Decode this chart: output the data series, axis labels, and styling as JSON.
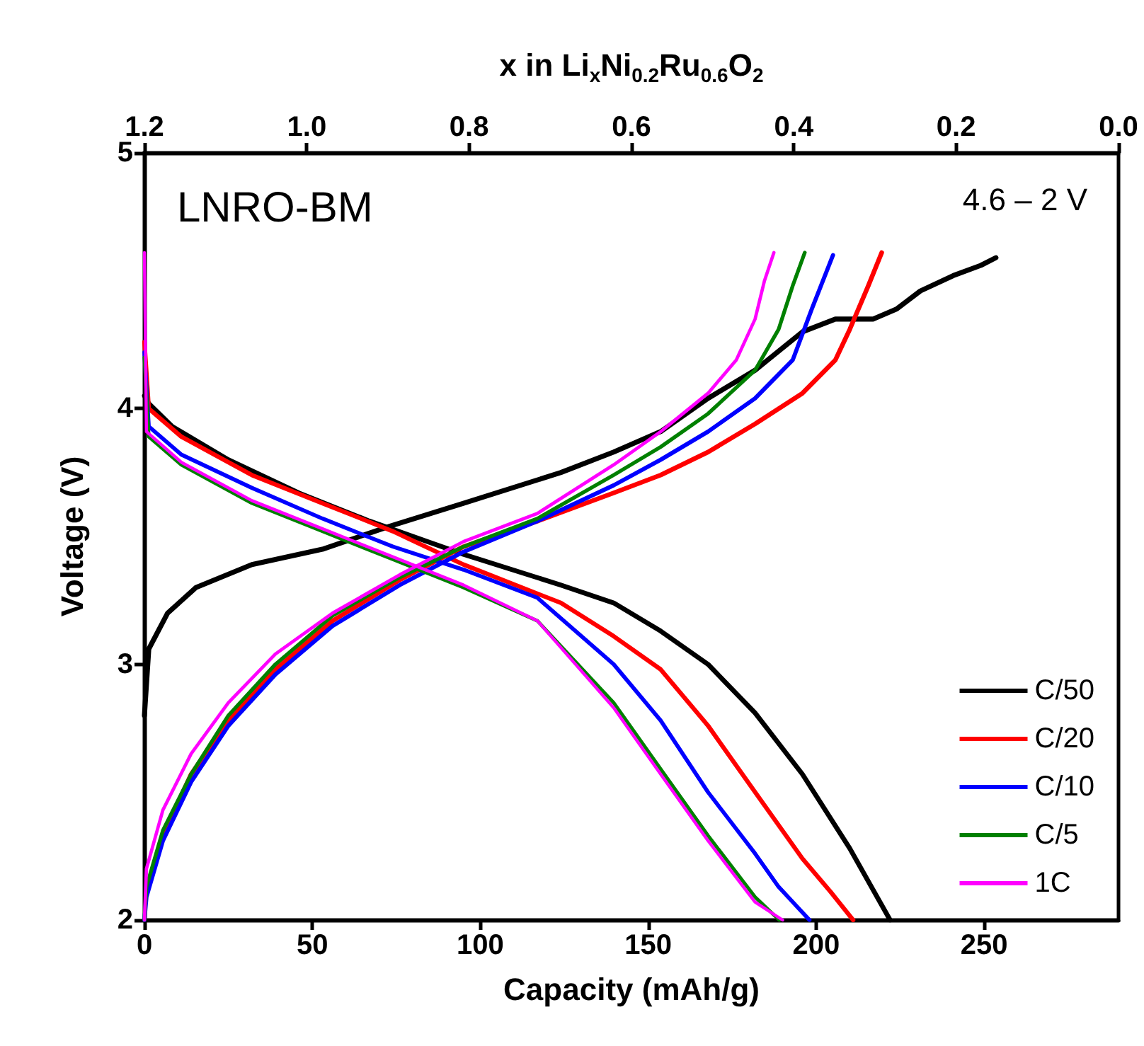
{
  "chart_data": {
    "type": "line",
    "xlabel": "Capacity (mAh/g)",
    "ylabel": "Voltage (V)",
    "x2label": "x in Li$_{x}$Ni$_{0.2}$Ru$_{0.6}$O$_{2}$",
    "annotations": [
      "LNRO-BM",
      "4.6 – 2 V"
    ],
    "xlim": [
      0,
      290
    ],
    "xticks": [
      0,
      50,
      100,
      150,
      200,
      250
    ],
    "x2lim": [
      1.2,
      0
    ],
    "x2ticks": [
      1.2,
      {
        "value": 1,
        "label": "1.0"
      },
      0.8,
      0.6,
      0.4,
      0.2,
      {
        "value": 0,
        "label": "0.0"
      }
    ],
    "ylim": [
      2,
      5
    ],
    "yticks": [
      2,
      3,
      4,
      5
    ],
    "grid": false,
    "legend": "bottom right",
    "marker": "none",
    "line_style": "solid",
    "series": [
      {
        "name": "C/50",
        "color": "#000000",
        "x": [
          0,
          1.3,
          6.9,
          15.3,
          32,
          53,
          73,
          95,
          124,
          139.7,
          153.7,
          167.8,
          181.8,
          195.9,
          205.7,
          217,
          224,
          231,
          240.8,
          249,
          253.5
        ],
        "values": [
          2.8,
          3.06,
          3.2,
          3.3,
          3.39,
          3.45,
          3.54,
          3.63,
          3.75,
          3.83,
          3.91,
          4.04,
          4.15,
          4.3,
          4.35,
          4.35,
          4.39,
          4.46,
          4.52,
          4.56,
          4.59
        ]
      },
      {
        "color": "#000000",
        "x": [
          0,
          1.3,
          8.3,
          25,
          46,
          67,
          95,
          124,
          139.7,
          153.7,
          167.8,
          181.8,
          195.9,
          210,
          222
        ],
        "values": [
          4.05,
          4.02,
          3.93,
          3.8,
          3.67,
          3.56,
          3.43,
          3.31,
          3.24,
          3.13,
          3.0,
          2.81,
          2.57,
          2.28,
          2.0
        ]
      },
      {
        "name": "C/20",
        "color": "#ff0000",
        "x": [
          5.5,
          13.9,
          25,
          39,
          56,
          76,
          95,
          117,
          139.7,
          153.7,
          167.8,
          181.8,
          195.9,
          205.7,
          210,
          215.5,
          219.5
        ],
        "values": [
          2.33,
          2.57,
          2.78,
          2.98,
          3.17,
          3.33,
          3.46,
          3.56,
          3.67,
          3.74,
          3.83,
          3.94,
          4.06,
          4.19,
          4.31,
          4.48,
          4.61
        ]
      },
      {
        "color": "#ff0000",
        "x": [
          0,
          1.3,
          11,
          32,
          53,
          74,
          95,
          124,
          139.7,
          153.7,
          167.8,
          181.8,
          195.9,
          204.3,
          211
        ],
        "values": [
          4.26,
          4.0,
          3.89,
          3.74,
          3.63,
          3.52,
          3.39,
          3.24,
          3.11,
          2.98,
          2.76,
          2.5,
          2.24,
          2.11,
          2.0
        ]
      },
      {
        "name": "C/10",
        "color": "#0000ff",
        "x": [
          0,
          0.6,
          5.5,
          13.9,
          25,
          39,
          56,
          76,
          95,
          117,
          139.7,
          153.7,
          167.8,
          181.8,
          193,
          198.7,
          205
        ],
        "values": [
          2.0,
          2.09,
          2.31,
          2.54,
          2.76,
          2.96,
          3.15,
          3.31,
          3.44,
          3.56,
          3.7,
          3.8,
          3.91,
          4.04,
          4.19,
          4.39,
          4.6
        ]
      },
      {
        "color": "#0000ff",
        "x": [
          0,
          1.3,
          11,
          32,
          53,
          74,
          95,
          117,
          139.7,
          153.7,
          167.8,
          181.8,
          188.8,
          198
        ],
        "values": [
          4.22,
          3.93,
          3.82,
          3.69,
          3.57,
          3.46,
          3.37,
          3.26,
          3.0,
          2.78,
          2.5,
          2.26,
          2.13,
          2.0
        ]
      },
      {
        "name": "C/5",
        "color": "#008000",
        "x": [
          0,
          0.6,
          5.5,
          13.9,
          25,
          39,
          56,
          76,
          95,
          117,
          139.7,
          153.7,
          167.8,
          181.8,
          188.8,
          193,
          196.6
        ],
        "values": [
          2.0,
          2.13,
          2.35,
          2.57,
          2.8,
          3.0,
          3.19,
          3.34,
          3.46,
          3.57,
          3.74,
          3.85,
          3.98,
          4.15,
          4.31,
          4.48,
          4.61
        ]
      },
      {
        "color": "#008000",
        "x": [
          0,
          1.3,
          11,
          32,
          53,
          74,
          95,
          117,
          139.7,
          153.7,
          167.8,
          181.8,
          189
        ],
        "values": [
          4.2,
          3.89,
          3.78,
          3.63,
          3.52,
          3.41,
          3.3,
          3.17,
          2.85,
          2.59,
          2.33,
          2.09,
          2.0
        ]
      },
      {
        "name": "1C",
        "color": "#ff00ff",
        "x": [
          0,
          0.6,
          5.5,
          13.9,
          25,
          39,
          56,
          76,
          95,
          117,
          139.7,
          153.7,
          167.8,
          176.2,
          181.8,
          184.6,
          187.4
        ],
        "values": [
          2.0,
          2.2,
          2.43,
          2.65,
          2.85,
          3.04,
          3.2,
          3.35,
          3.48,
          3.59,
          3.78,
          3.91,
          4.06,
          4.19,
          4.35,
          4.5,
          4.61
        ]
      },
      {
        "color": "#ff00ff",
        "x": [
          0,
          0.6,
          11,
          32,
          53,
          74,
          95,
          117,
          139.7,
          153.7,
          167.8,
          181.8,
          190
        ],
        "values": [
          4.61,
          3.91,
          3.79,
          3.64,
          3.53,
          3.42,
          3.31,
          3.17,
          2.83,
          2.57,
          2.31,
          2.07,
          2.0
        ]
      }
    ]
  }
}
